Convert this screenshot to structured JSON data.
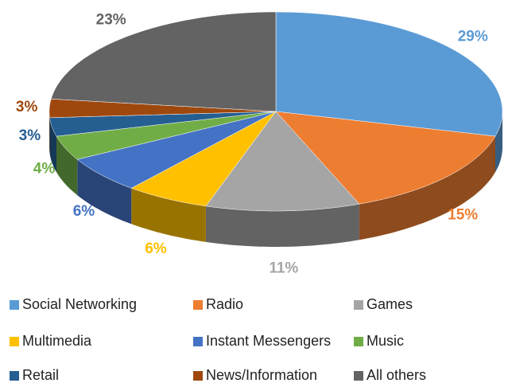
{
  "chart_data": {
    "type": "pie3d",
    "categories": [
      "Social Networking",
      "Radio",
      "Games",
      "Multimedia",
      "Instant Messengers",
      "Music",
      "Retail",
      "News/Information",
      "All others"
    ],
    "values": [
      29,
      15,
      11,
      6,
      6,
      4,
      3,
      3,
      23
    ],
    "value_labels": [
      "29%",
      "15%",
      "11%",
      "6%",
      "6%",
      "4%",
      "3%",
      "3%",
      "23%"
    ],
    "colors": [
      "#5b9bd5",
      "#ed7d31",
      "#a5a5a5",
      "#ffc000",
      "#4472c4",
      "#70ad47",
      "#255e91",
      "#9e480e",
      "#636363"
    ],
    "legend": "bottom"
  }
}
